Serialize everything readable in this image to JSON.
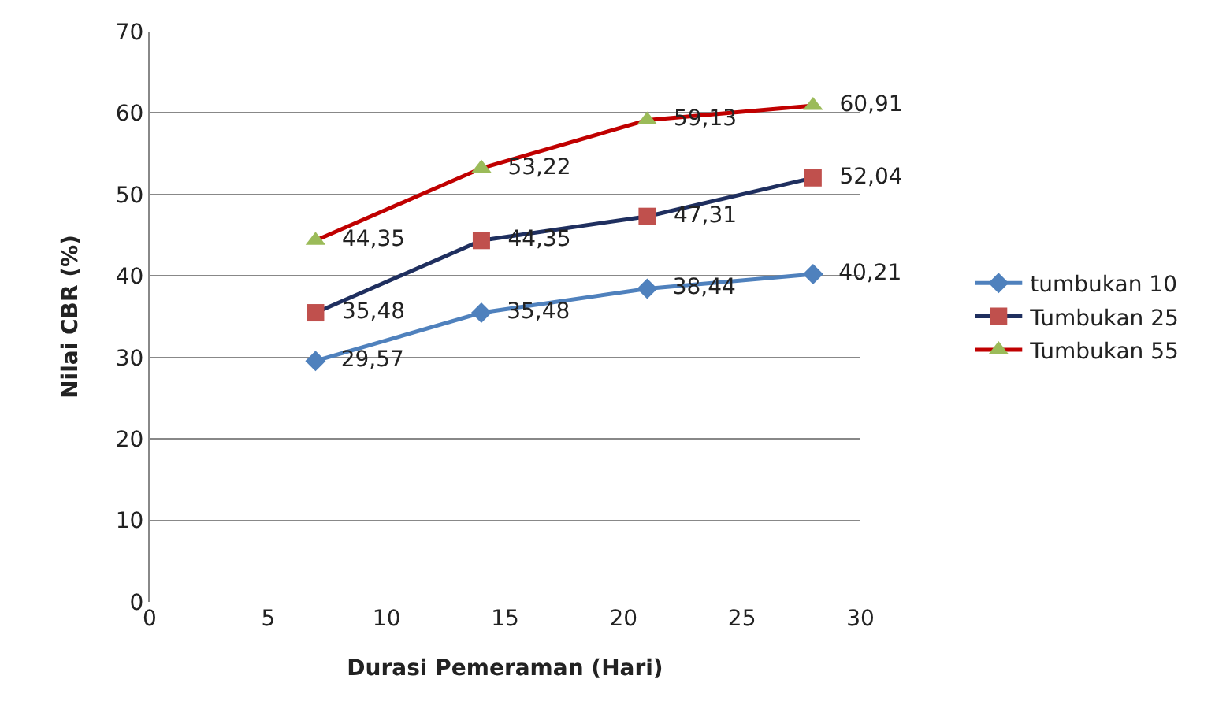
{
  "chart_data": {
    "type": "line",
    "xlabel": "Durasi Pemeraman (Hari)",
    "ylabel": "Nilai CBR (%)",
    "x": [
      7,
      14,
      21,
      28
    ],
    "series": [
      {
        "name": "tumbukan 10",
        "color": "#4f81bd",
        "colors": [
          "#4f81bd",
          "#4f81bd",
          "#4f81bd",
          "#4f81bd"
        ],
        "marker": "diamond",
        "values": [
          29.57,
          35.48,
          38.44,
          40.21
        ],
        "value_labels": [
          "29,57",
          "35,48",
          "38,44",
          "40,21"
        ]
      },
      {
        "name": "Tumbukan 25",
        "color": "#1f2f5f",
        "colors": [
          "#c0504d",
          "#c0504d",
          "#c0504d",
          "#c0504d"
        ],
        "marker": "square",
        "values": [
          35.48,
          44.35,
          47.31,
          52.04
        ],
        "value_labels": [
          "35,48",
          "44,35",
          "47,31",
          "52,04"
        ]
      },
      {
        "name": "Tumbukan 55",
        "color": "#c00000",
        "colors": [
          "#9bbb59",
          "#9bbb59",
          "#9bbb59",
          "#9bbb59"
        ],
        "marker": "triangle",
        "values": [
          44.35,
          53.22,
          59.13,
          60.91
        ],
        "value_labels": [
          "44,35",
          "53,22",
          "59,13",
          "60,91"
        ]
      }
    ],
    "xlim": [
      0,
      30
    ],
    "xticks": [
      0,
      5,
      10,
      15,
      20,
      25,
      30
    ],
    "ylim": [
      0,
      70
    ],
    "yticks": [
      0,
      10,
      20,
      30,
      40,
      50,
      60,
      70
    ],
    "grid": "y",
    "legend": "right",
    "line_style": "solid"
  }
}
